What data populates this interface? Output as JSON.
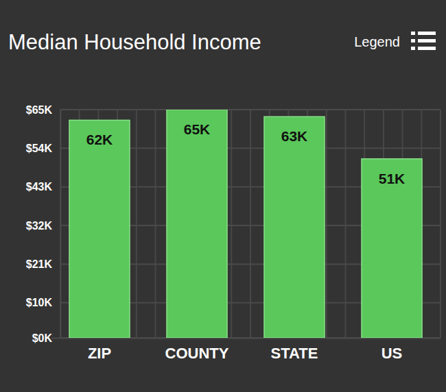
{
  "chart_data": {
    "type": "bar",
    "title": "Median Household Income",
    "annotations": [
      "Legend"
    ],
    "categories": [
      "ZIP",
      "COUNTY",
      "STATE",
      "US"
    ],
    "values": [
      62,
      65,
      63,
      51
    ],
    "value_labels": [
      "62K",
      "65K",
      "63K",
      "51K"
    ],
    "color": "#5ac85a",
    "ylim": [
      0,
      65
    ],
    "yticks": [
      {
        "value": 0,
        "label": "$0K"
      },
      {
        "value": 10,
        "label": "$10K"
      },
      {
        "value": 21,
        "label": "$21K"
      },
      {
        "value": 32,
        "label": "$32K"
      },
      {
        "value": 43,
        "label": "$43K"
      },
      {
        "value": 54,
        "label": "$54K"
      },
      {
        "value": 65,
        "label": "$65K"
      }
    ],
    "grid": true,
    "data_labels": true
  }
}
